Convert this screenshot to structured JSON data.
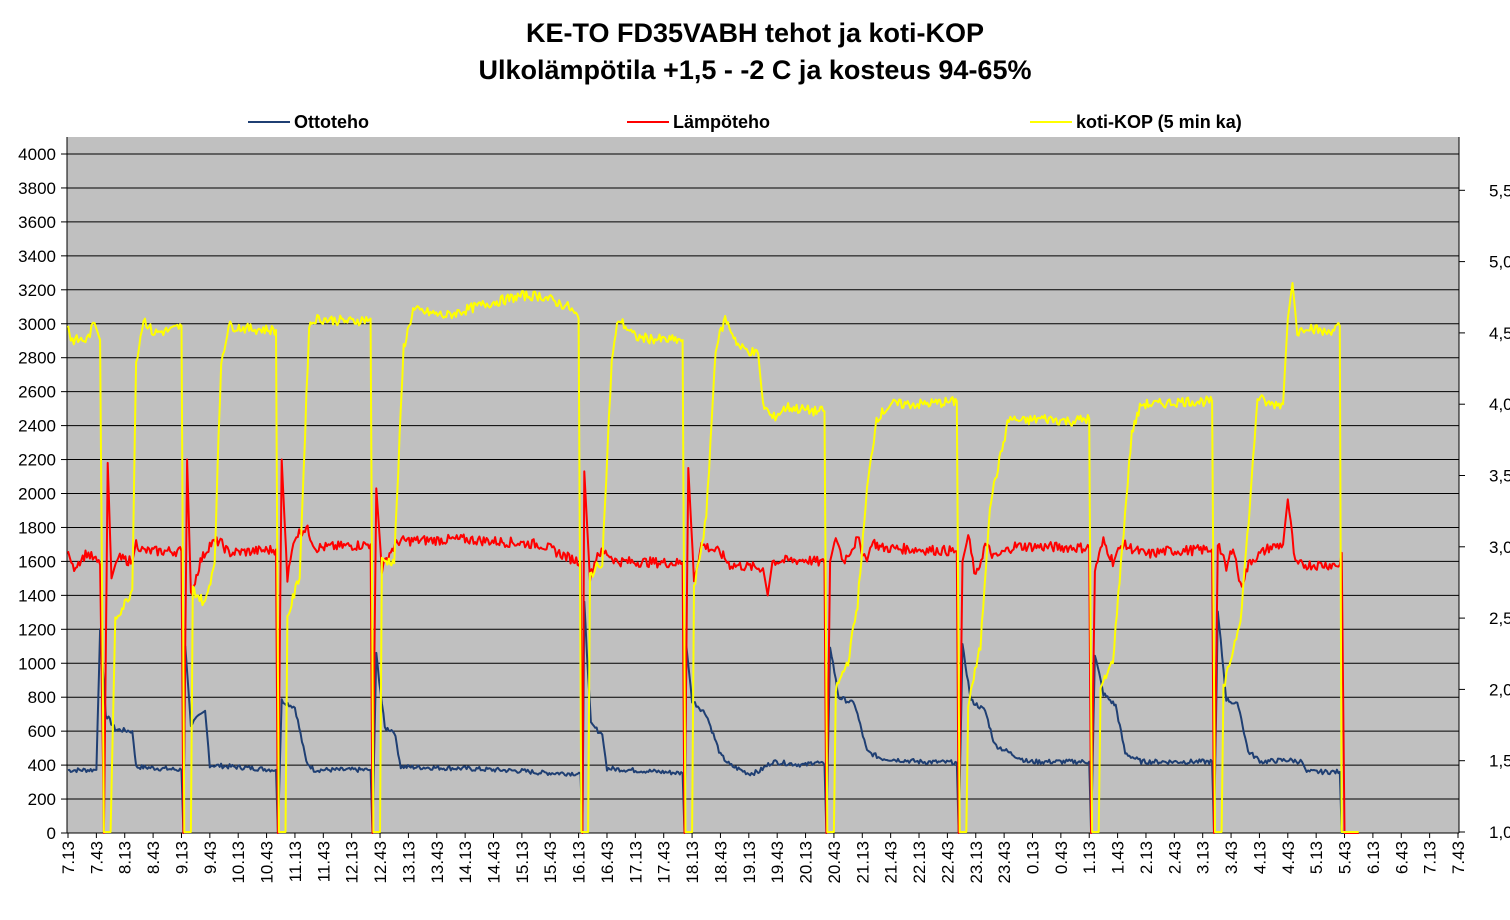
{
  "chart_data": {
    "type": "line",
    "title": "KE-TO FD35VABH  tehot ja koti-KOP",
    "subtitle": "Ulkolämpötila +1,5 - -2 C ja kosteus 94-65%",
    "legend_position": "top",
    "grid": true,
    "plot_background": "#c0c0c0",
    "y_left": {
      "ylim": [
        0,
        4000
      ],
      "ticks": [
        "0",
        "200",
        "400",
        "600",
        "800",
        "1000",
        "1200",
        "1400",
        "1600",
        "1800",
        "2000",
        "2200",
        "2400",
        "2600",
        "2800",
        "3000",
        "3200",
        "3400",
        "3600",
        "3800",
        "4000"
      ]
    },
    "y_right": {
      "ylim": [
        1.0,
        5.8
      ],
      "ticks": [
        "1,0",
        "1,5",
        "2,0",
        "2,5",
        "3,0",
        "3,5",
        "4,0",
        "4,5",
        "5,0",
        "5,5"
      ]
    },
    "x_tick_labels": [
      "7.13",
      "7.43",
      "8.13",
      "8.43",
      "9.13",
      "9.43",
      "10.13",
      "10.43",
      "11.13",
      "11.43",
      "12.13",
      "12.43",
      "13.13",
      "13.43",
      "14.13",
      "14.43",
      "15.13",
      "15.43",
      "16.13",
      "16.43",
      "17.13",
      "17.43",
      "18.13",
      "18.43",
      "19.13",
      "19.43",
      "20.13",
      "20.43",
      "21.13",
      "21.43",
      "22.13",
      "22.43",
      "23.13",
      "23.43",
      "0.13",
      "0.43",
      "1.13",
      "1.43",
      "2.13",
      "2.43",
      "3.13",
      "3.43",
      "4.13",
      "4.43",
      "5.13",
      "5.43",
      "6.13",
      "6.43",
      "7.13",
      "7.43"
    ],
    "x_unit": "minutes from 7:13",
    "series": [
      {
        "name": "Ottoteho",
        "axis": "left",
        "color": "#1f3f73",
        "points": [
          [
            0,
            370
          ],
          [
            30,
            372
          ],
          [
            34,
            1200
          ],
          [
            40,
            700
          ],
          [
            50,
            610
          ],
          [
            68,
            600
          ],
          [
            72,
            390
          ],
          [
            120,
            372
          ],
          [
            122,
            0
          ],
          [
            124,
            1100
          ],
          [
            130,
            640
          ],
          [
            145,
            720
          ],
          [
            150,
            400
          ],
          [
            220,
            372
          ],
          [
            222,
            0
          ],
          [
            226,
            780
          ],
          [
            240,
            740
          ],
          [
            252,
            420
          ],
          [
            260,
            372
          ],
          [
            320,
            372
          ],
          [
            322,
            0
          ],
          [
            326,
            1050
          ],
          [
            335,
            620
          ],
          [
            345,
            600
          ],
          [
            352,
            390
          ],
          [
            420,
            380
          ],
          [
            480,
            365
          ],
          [
            500,
            355
          ],
          [
            542,
            350
          ],
          [
            544,
            0
          ],
          [
            546,
            1350
          ],
          [
            553,
            640
          ],
          [
            565,
            580
          ],
          [
            570,
            380
          ],
          [
            650,
            352
          ],
          [
            652,
            0
          ],
          [
            654,
            1100
          ],
          [
            660,
            780
          ],
          [
            675,
            700
          ],
          [
            690,
            460
          ],
          [
            700,
            400
          ],
          [
            720,
            350
          ],
          [
            730,
            360
          ],
          [
            745,
            420
          ],
          [
            780,
            400
          ],
          [
            790,
            420
          ],
          [
            800,
            400
          ],
          [
            802,
            0
          ],
          [
            806,
            1100
          ],
          [
            815,
            800
          ],
          [
            832,
            760
          ],
          [
            845,
            480
          ],
          [
            860,
            440
          ],
          [
            900,
            420
          ],
          [
            940,
            415
          ],
          [
            942,
            0
          ],
          [
            946,
            1100
          ],
          [
            955,
            780
          ],
          [
            970,
            720
          ],
          [
            980,
            520
          ],
          [
            1000,
            460
          ],
          [
            1015,
            420
          ],
          [
            1080,
            420
          ],
          [
            1082,
            0
          ],
          [
            1086,
            1050
          ],
          [
            1095,
            820
          ],
          [
            1108,
            750
          ],
          [
            1118,
            470
          ],
          [
            1135,
            420
          ],
          [
            1210,
            420
          ],
          [
            1212,
            0
          ],
          [
            1216,
            1300
          ],
          [
            1225,
            790
          ],
          [
            1238,
            750
          ],
          [
            1248,
            480
          ],
          [
            1262,
            420
          ],
          [
            1290,
            430
          ],
          [
            1305,
            420
          ],
          [
            1310,
            360
          ],
          [
            1345,
            360
          ],
          [
            1347,
            0
          ],
          [
            1365,
            0
          ]
        ]
      },
      {
        "name": "Lämpöteho",
        "axis": "left",
        "color": "#ff0000",
        "points": [
          [
            0,
            1660
          ],
          [
            5,
            1560
          ],
          [
            20,
            1650
          ],
          [
            34,
            1580
          ],
          [
            38,
            0
          ],
          [
            42,
            2180
          ],
          [
            46,
            1500
          ],
          [
            52,
            1620
          ],
          [
            68,
            1600
          ],
          [
            72,
            1710
          ],
          [
            80,
            1660
          ],
          [
            120,
            1660
          ],
          [
            122,
            0
          ],
          [
            126,
            2200
          ],
          [
            130,
            1400
          ],
          [
            140,
            1600
          ],
          [
            150,
            1700
          ],
          [
            160,
            1720
          ],
          [
            170,
            1650
          ],
          [
            220,
            1670
          ],
          [
            222,
            0
          ],
          [
            226,
            2200
          ],
          [
            232,
            1500
          ],
          [
            240,
            1750
          ],
          [
            252,
            1800
          ],
          [
            262,
            1680
          ],
          [
            320,
            1700
          ],
          [
            322,
            0
          ],
          [
            326,
            2030
          ],
          [
            332,
            1550
          ],
          [
            340,
            1650
          ],
          [
            350,
            1720
          ],
          [
            420,
            1730
          ],
          [
            500,
            1700
          ],
          [
            530,
            1620
          ],
          [
            542,
            1600
          ],
          [
            544,
            0
          ],
          [
            546,
            2130
          ],
          [
            552,
            1500
          ],
          [
            560,
            1650
          ],
          [
            570,
            1650
          ],
          [
            580,
            1600
          ],
          [
            650,
            1590
          ],
          [
            652,
            0
          ],
          [
            656,
            2150
          ],
          [
            662,
            1500
          ],
          [
            670,
            1700
          ],
          [
            690,
            1650
          ],
          [
            700,
            1580
          ],
          [
            735,
            1560
          ],
          [
            740,
            1400
          ],
          [
            745,
            1600
          ],
          [
            780,
            1610
          ],
          [
            800,
            1590
          ],
          [
            802,
            0
          ],
          [
            806,
            1600
          ],
          [
            812,
            1750
          ],
          [
            820,
            1600
          ],
          [
            835,
            1730
          ],
          [
            845,
            1600
          ],
          [
            850,
            1720
          ],
          [
            860,
            1680
          ],
          [
            940,
            1660
          ],
          [
            942,
            0
          ],
          [
            946,
            1600
          ],
          [
            952,
            1750
          ],
          [
            960,
            1500
          ],
          [
            970,
            1700
          ],
          [
            980,
            1620
          ],
          [
            1000,
            1690
          ],
          [
            1080,
            1680
          ],
          [
            1082,
            0
          ],
          [
            1086,
            1550
          ],
          [
            1095,
            1720
          ],
          [
            1105,
            1600
          ],
          [
            1115,
            1700
          ],
          [
            1140,
            1640
          ],
          [
            1160,
            1660
          ],
          [
            1210,
            1670
          ],
          [
            1212,
            0
          ],
          [
            1216,
            1720
          ],
          [
            1225,
            1550
          ],
          [
            1232,
            1700
          ],
          [
            1240,
            1450
          ],
          [
            1250,
            1600
          ],
          [
            1270,
            1680
          ],
          [
            1285,
            1700
          ],
          [
            1290,
            1970
          ],
          [
            1298,
            1580
          ],
          [
            1345,
            1580
          ],
          [
            1347,
            1650
          ],
          [
            1350,
            0
          ],
          [
            1365,
            0
          ]
        ]
      },
      {
        "name": "koti-KOP (5 min ka)",
        "axis": "right",
        "color": "#ffff00",
        "points": [
          [
            0,
            4.55
          ],
          [
            3,
            4.45
          ],
          [
            20,
            4.45
          ],
          [
            28,
            4.57
          ],
          [
            34,
            4.45
          ],
          [
            38,
            1.0
          ],
          [
            45,
            1.0
          ],
          [
            50,
            2.5
          ],
          [
            60,
            2.6
          ],
          [
            68,
            2.7
          ],
          [
            72,
            4.3
          ],
          [
            80,
            4.6
          ],
          [
            90,
            4.5
          ],
          [
            110,
            4.52
          ],
          [
            120,
            4.55
          ],
          [
            123,
            1.0
          ],
          [
            130,
            1.0
          ],
          [
            132,
            2.7
          ],
          [
            145,
            2.6
          ],
          [
            155,
            2.9
          ],
          [
            162,
            4.3
          ],
          [
            170,
            4.55
          ],
          [
            190,
            4.53
          ],
          [
            220,
            4.52
          ],
          [
            223,
            1.0
          ],
          [
            230,
            1.0
          ],
          [
            232,
            2.5
          ],
          [
            245,
            2.8
          ],
          [
            255,
            4.55
          ],
          [
            262,
            4.6
          ],
          [
            300,
            4.58
          ],
          [
            320,
            4.6
          ],
          [
            323,
            1.0
          ],
          [
            330,
            1.0
          ],
          [
            332,
            2.9
          ],
          [
            345,
            2.9
          ],
          [
            355,
            4.4
          ],
          [
            365,
            4.66
          ],
          [
            400,
            4.62
          ],
          [
            440,
            4.7
          ],
          [
            480,
            4.76
          ],
          [
            500,
            4.76
          ],
          [
            530,
            4.68
          ],
          [
            540,
            4.6
          ],
          [
            543,
            1.0
          ],
          [
            550,
            1.0
          ],
          [
            552,
            2.8
          ],
          [
            565,
            2.9
          ],
          [
            575,
            4.3
          ],
          [
            582,
            4.6
          ],
          [
            600,
            4.47
          ],
          [
            630,
            4.45
          ],
          [
            650,
            4.45
          ],
          [
            653,
            1.0
          ],
          [
            660,
            1.0
          ],
          [
            662,
            2.7
          ],
          [
            675,
            3.2
          ],
          [
            685,
            4.4
          ],
          [
            695,
            4.6
          ],
          [
            710,
            4.4
          ],
          [
            730,
            4.35
          ],
          [
            735,
            4.0
          ],
          [
            745,
            3.9
          ],
          [
            760,
            3.98
          ],
          [
            790,
            3.95
          ],
          [
            800,
            3.95
          ],
          [
            803,
            1.0
          ],
          [
            810,
            1.0
          ],
          [
            812,
            2.0
          ],
          [
            825,
            2.2
          ],
          [
            835,
            2.6
          ],
          [
            845,
            3.4
          ],
          [
            855,
            3.9
          ],
          [
            870,
            4.0
          ],
          [
            900,
            4.0
          ],
          [
            940,
            4.02
          ],
          [
            943,
            1.0
          ],
          [
            950,
            1.0
          ],
          [
            952,
            1.9
          ],
          [
            965,
            2.3
          ],
          [
            975,
            3.3
          ],
          [
            985,
            3.6
          ],
          [
            995,
            3.9
          ],
          [
            1010,
            3.88
          ],
          [
            1030,
            3.9
          ],
          [
            1060,
            3.88
          ],
          [
            1080,
            3.9
          ],
          [
            1083,
            1.0
          ],
          [
            1090,
            1.0
          ],
          [
            1092,
            2.0
          ],
          [
            1105,
            2.2
          ],
          [
            1115,
            3.0
          ],
          [
            1125,
            3.8
          ],
          [
            1135,
            4.0
          ],
          [
            1150,
            4.0
          ],
          [
            1180,
            4.02
          ],
          [
            1210,
            4.02
          ],
          [
            1213,
            1.0
          ],
          [
            1220,
            1.0
          ],
          [
            1222,
            2.0
          ],
          [
            1240,
            2.5
          ],
          [
            1250,
            3.3
          ],
          [
            1258,
            4.05
          ],
          [
            1270,
            4.0
          ],
          [
            1285,
            4.0
          ],
          [
            1290,
            4.6
          ],
          [
            1295,
            4.85
          ],
          [
            1300,
            4.5
          ],
          [
            1310,
            4.55
          ],
          [
            1330,
            4.5
          ],
          [
            1345,
            4.55
          ],
          [
            1347,
            1.0
          ],
          [
            1365,
            1.0
          ]
        ]
      }
    ]
  }
}
